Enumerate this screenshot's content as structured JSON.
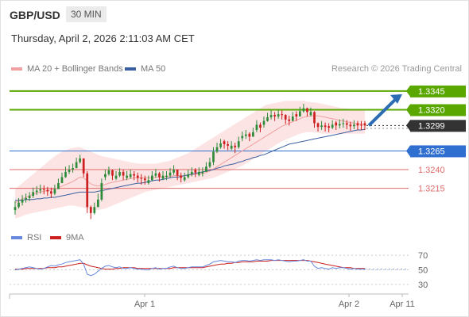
{
  "header": {
    "symbol": "GBP/USD",
    "timeframe": "30 MIN"
  },
  "datetime": "Thursday, April 2, 2026 2:11:03 AM CET",
  "credit": "Research © 2026 Trading Central",
  "colors": {
    "bb_band": "#fde4e4",
    "ma20": "#f0a0a0",
    "ma50": "#3a5fa0",
    "candle_up": "#2e8b3a",
    "candle_down": "#cc1f1f",
    "resistance": "#5aa700",
    "current": "#333333",
    "support_blue": "#2f6fcf",
    "support_red": "#e06a6a",
    "arrow": "#2c6cb5",
    "rsi": "#6688dd",
    "rsi_ma": "#cc1f1f"
  },
  "legend": {
    "bb_label": "MA 20 + Bollinger Bands",
    "ma50_label": "MA 50"
  },
  "rsi_legend": {
    "rsi_label": "RSI",
    "ma_label": "9MA"
  },
  "chart_data": [
    {
      "type": "candlestick",
      "title": "GBP/USD",
      "levels": [
        {
          "value": 1.3345,
          "label": "1.3345",
          "kind": "resistance"
        },
        {
          "value": 1.332,
          "label": "1.3320",
          "kind": "resistance"
        },
        {
          "value": 1.3299,
          "label": "1.3299",
          "kind": "current"
        },
        {
          "value": 1.3265,
          "label": "1.3265",
          "kind": "support"
        },
        {
          "value": 1.324,
          "label": "1.3240",
          "kind": "support-minor"
        },
        {
          "value": 1.3215,
          "label": "1.3215",
          "kind": "support-minor"
        }
      ],
      "ylim": [
        1.3167,
        1.3365
      ],
      "x_ticks": [
        "Apr 1",
        "Apr 2",
        "Apr 11"
      ],
      "close": [
        1.319,
        1.3196,
        1.32,
        1.3202,
        1.3205,
        1.321,
        1.3212,
        1.3214,
        1.3213,
        1.3211,
        1.3208,
        1.3214,
        1.3222,
        1.323,
        1.3237,
        1.324,
        1.3242,
        1.325,
        1.3255,
        1.3235,
        1.319,
        1.3182,
        1.319,
        1.32,
        1.3222,
        1.3234,
        1.3239,
        1.3232,
        1.3232,
        1.3237,
        1.3232,
        1.3232,
        1.3234,
        1.3232,
        1.3229,
        1.3228,
        1.3226,
        1.3226,
        1.3232,
        1.3235,
        1.323,
        1.3232,
        1.3232,
        1.3236,
        1.324,
        1.3232,
        1.3229,
        1.323,
        1.3234,
        1.3237,
        1.3236,
        1.3237,
        1.3237,
        1.3244,
        1.325,
        1.3264,
        1.327,
        1.3275,
        1.3274,
        1.3272,
        1.3272,
        1.327,
        1.3278,
        1.3285,
        1.3287,
        1.3284,
        1.329,
        1.33,
        1.3296,
        1.3305,
        1.331,
        1.3313,
        1.3311,
        1.3314,
        1.3313,
        1.3307,
        1.3305,
        1.3311,
        1.3311,
        1.3318,
        1.3322,
        1.3317,
        1.3317,
        1.3302,
        1.3297,
        1.3299,
        1.3297,
        1.3296,
        1.33,
        1.3299,
        1.3301,
        1.3302,
        1.33,
        1.3298,
        1.33,
        1.3299,
        1.3299,
        1.3299
      ],
      "high": [
        1.3198,
        1.3202,
        1.3206,
        1.3208,
        1.321,
        1.3216,
        1.3218,
        1.322,
        1.3219,
        1.3217,
        1.3216,
        1.322,
        1.3228,
        1.3236,
        1.3244,
        1.3246,
        1.3248,
        1.3256,
        1.326,
        1.3255,
        1.3238,
        1.3192,
        1.3196,
        1.3208,
        1.3228,
        1.324,
        1.3244,
        1.324,
        1.3238,
        1.3242,
        1.324,
        1.3238,
        1.324,
        1.3238,
        1.3236,
        1.3234,
        1.3232,
        1.3232,
        1.3238,
        1.3241,
        1.3237,
        1.3238,
        1.3238,
        1.3242,
        1.3246,
        1.324,
        1.3236,
        1.3236,
        1.324,
        1.3243,
        1.3242,
        1.3243,
        1.3243,
        1.325,
        1.3256,
        1.327,
        1.3276,
        1.3281,
        1.328,
        1.3278,
        1.3278,
        1.3276,
        1.3284,
        1.3291,
        1.3293,
        1.329,
        1.3296,
        1.3306,
        1.3303,
        1.3311,
        1.3316,
        1.3319,
        1.3317,
        1.332,
        1.3319,
        1.3314,
        1.3312,
        1.3317,
        1.3318,
        1.3324,
        1.3328,
        1.3323,
        1.3323,
        1.3318,
        1.3303,
        1.3305,
        1.3303,
        1.3302,
        1.3306,
        1.3305,
        1.3307,
        1.3308,
        1.3306,
        1.3304,
        1.3306,
        1.3305,
        1.3305,
        1.3305
      ],
      "low": [
        1.318,
        1.3188,
        1.3192,
        1.3196,
        1.3198,
        1.3202,
        1.3206,
        1.3208,
        1.3207,
        1.3205,
        1.3202,
        1.3206,
        1.3214,
        1.3222,
        1.3229,
        1.3234,
        1.3236,
        1.3242,
        1.3248,
        1.323,
        1.3182,
        1.3174,
        1.318,
        1.319,
        1.3198,
        1.3226,
        1.3232,
        1.3226,
        1.3226,
        1.323,
        1.3226,
        1.3226,
        1.3228,
        1.3226,
        1.3223,
        1.322,
        1.322,
        1.322,
        1.3225,
        1.3229,
        1.3224,
        1.3226,
        1.3226,
        1.3229,
        1.3233,
        1.3226,
        1.3223,
        1.3224,
        1.3228,
        1.3231,
        1.323,
        1.3231,
        1.3231,
        1.3237,
        1.3242,
        1.3246,
        1.3262,
        1.3268,
        1.3268,
        1.3266,
        1.3266,
        1.3262,
        1.3268,
        1.3278,
        1.3281,
        1.3278,
        1.3284,
        1.329,
        1.329,
        1.3296,
        1.3304,
        1.3307,
        1.3305,
        1.3308,
        1.3307,
        1.3301,
        1.3299,
        1.3305,
        1.3305,
        1.3311,
        1.3316,
        1.3311,
        1.3311,
        1.3296,
        1.3291,
        1.3293,
        1.3291,
        1.329,
        1.3294,
        1.3293,
        1.3295,
        1.3296,
        1.3294,
        1.3292,
        1.3294,
        1.3293,
        1.3293,
        1.3293
      ],
      "open": [
        1.3186,
        1.319,
        1.3196,
        1.32,
        1.3202,
        1.3205,
        1.321,
        1.3212,
        1.3214,
        1.3213,
        1.3211,
        1.3208,
        1.3214,
        1.3222,
        1.323,
        1.3237,
        1.324,
        1.3242,
        1.325,
        1.3255,
        1.3235,
        1.319,
        1.3182,
        1.319,
        1.32,
        1.323,
        1.3234,
        1.3239,
        1.3228,
        1.3232,
        1.3237,
        1.3229,
        1.323,
        1.3234,
        1.3232,
        1.3229,
        1.3228,
        1.3222,
        1.3226,
        1.3232,
        1.3235,
        1.3228,
        1.323,
        1.3232,
        1.3236,
        1.324,
        1.3232,
        1.3226,
        1.323,
        1.3234,
        1.324,
        1.3233,
        1.3235,
        1.3237,
        1.3244,
        1.325,
        1.3264,
        1.327,
        1.3278,
        1.3274,
        1.3268,
        1.3272,
        1.327,
        1.3282,
        1.3285,
        1.3288,
        1.3284,
        1.3293,
        1.33,
        1.33,
        1.3305,
        1.331,
        1.3313,
        1.3311,
        1.3314,
        1.3313,
        1.3307,
        1.3305,
        1.3314,
        1.3311,
        1.3318,
        1.3322,
        1.3313,
        1.3317,
        1.3302,
        1.3297,
        1.3299,
        1.3298,
        1.3296,
        1.3303,
        1.3299,
        1.3301,
        1.3302,
        1.33,
        1.3298,
        1.3302,
        1.33,
        1.3302
      ],
      "ma20": [
        1.3196,
        1.3198,
        1.3201,
        1.3203,
        1.3205,
        1.3207,
        1.3209,
        1.321,
        1.3211,
        1.3212,
        1.3213,
        1.3214,
        1.3216,
        1.3218,
        1.322,
        1.3222,
        1.3224,
        1.3227,
        1.323,
        1.3229,
        1.3225,
        1.3221,
        1.3219,
        1.3218,
        1.3219,
        1.322,
        1.3222,
        1.3223,
        1.3224,
        1.3225,
        1.3226,
        1.3227,
        1.3228,
        1.3229,
        1.3229,
        1.3229,
        1.3229,
        1.3229,
        1.3229,
        1.323,
        1.323,
        1.323,
        1.3231,
        1.3231,
        1.3232,
        1.3232,
        1.3232,
        1.3232,
        1.3233,
        1.3233,
        1.3234,
        1.3234,
        1.3235,
        1.3236,
        1.3238,
        1.3241,
        1.3244,
        1.3247,
        1.325,
        1.3253,
        1.3256,
        1.3259,
        1.3262,
        1.3265,
        1.3268,
        1.3271,
        1.3274,
        1.3277,
        1.328,
        1.3283,
        1.3286,
        1.3289,
        1.3292,
        1.3295,
        1.3298,
        1.33,
        1.3302,
        1.3304,
        1.3306,
        1.3308,
        1.331,
        1.3311,
        1.3312,
        1.3312,
        1.3312,
        1.3311,
        1.331,
        1.3309,
        1.3308,
        1.3307,
        1.3306,
        1.3305,
        1.3304,
        1.3303,
        1.3302,
        1.3301,
        1.3301,
        1.33
      ],
      "ma50": [
        1.3199,
        1.3199,
        1.3199,
        1.32,
        1.32,
        1.32,
        1.3201,
        1.3201,
        1.3202,
        1.3202,
        1.3203,
        1.3203,
        1.3204,
        1.3205,
        1.3206,
        1.3207,
        1.3208,
        1.3209,
        1.321,
        1.321,
        1.321,
        1.321,
        1.321,
        1.3211,
        1.3212,
        1.3213,
        1.3214,
        1.3215,
        1.3216,
        1.3217,
        1.3218,
        1.3219,
        1.322,
        1.3221,
        1.3222,
        1.3222,
        1.3223,
        1.3224,
        1.3225,
        1.3226,
        1.3226,
        1.3227,
        1.3228,
        1.3229,
        1.323,
        1.323,
        1.3231,
        1.3232,
        1.3233,
        1.3234,
        1.3235,
        1.3236,
        1.3237,
        1.3238,
        1.3239,
        1.324,
        1.3242,
        1.3243,
        1.3245,
        1.3246,
        1.3247,
        1.3248,
        1.325,
        1.3251,
        1.3253,
        1.3254,
        1.3256,
        1.3257,
        1.3259,
        1.326,
        1.3262,
        1.3264,
        1.3266,
        1.3268,
        1.327,
        1.3272,
        1.3274,
        1.3275,
        1.3276,
        1.3277,
        1.3278,
        1.3279,
        1.328,
        1.3281,
        1.3282,
        1.3283,
        1.3284,
        1.3285,
        1.3286,
        1.3287,
        1.3288,
        1.3289,
        1.329,
        1.3291,
        1.3292,
        1.3293,
        1.3293,
        1.3294
      ],
      "bb_upper": [
        1.3214,
        1.3218,
        1.3222,
        1.3226,
        1.323,
        1.3234,
        1.3238,
        1.3242,
        1.3246,
        1.325,
        1.3254,
        1.3258,
        1.3261,
        1.3264,
        1.3266,
        1.3268,
        1.3269,
        1.327,
        1.327,
        1.3268,
        1.3266,
        1.3264,
        1.3262,
        1.326,
        1.3258,
        1.3257,
        1.3256,
        1.3255,
        1.3254,
        1.3253,
        1.3252,
        1.3251,
        1.325,
        1.3249,
        1.3248,
        1.3248,
        1.3248,
        1.3248,
        1.3248,
        1.3248,
        1.3249,
        1.325,
        1.3251,
        1.3252,
        1.3254,
        1.3256,
        1.3258,
        1.326,
        1.3262,
        1.3265,
        1.3268,
        1.3271,
        1.3274,
        1.3277,
        1.328,
        1.3283,
        1.3286,
        1.3289,
        1.3292,
        1.3295,
        1.3298,
        1.3301,
        1.3304,
        1.3307,
        1.331,
        1.3313,
        1.3316,
        1.3319,
        1.3322,
        1.3325,
        1.3327,
        1.3328,
        1.3329,
        1.333,
        1.3331,
        1.3332,
        1.3332,
        1.3332,
        1.3332,
        1.3332,
        1.3332,
        1.3331,
        1.333,
        1.333,
        1.3329,
        1.3328,
        1.3327,
        1.3326,
        1.3325,
        1.3324,
        1.3323,
        1.3322,
        1.3322,
        1.3321,
        1.332,
        1.332,
        1.332,
        1.332
      ],
      "bb_lower": [
        1.3175,
        1.3176,
        1.3178,
        1.318,
        1.3181,
        1.3182,
        1.3183,
        1.3184,
        1.3185,
        1.3186,
        1.3187,
        1.3188,
        1.3189,
        1.319,
        1.3191,
        1.3192,
        1.3192,
        1.3191,
        1.319,
        1.3189,
        1.3188,
        1.3187,
        1.3186,
        1.3186,
        1.3187,
        1.3188,
        1.319,
        1.3192,
        1.3194,
        1.3196,
        1.3198,
        1.32,
        1.3202,
        1.3204,
        1.3206,
        1.3208,
        1.321,
        1.3211,
        1.3212,
        1.3213,
        1.3214,
        1.3215,
        1.3216,
        1.3217,
        1.3218,
        1.3219,
        1.322,
        1.3221,
        1.3222,
        1.3223,
        1.3224,
        1.3225,
        1.3226,
        1.3227,
        1.3228,
        1.3229,
        1.3231,
        1.3233,
        1.3235,
        1.3237,
        1.3239,
        1.3241,
        1.3243,
        1.3245,
        1.3248,
        1.3251,
        1.3254,
        1.3257,
        1.326,
        1.3263,
        1.3266,
        1.3269,
        1.3272,
        1.3275,
        1.3278,
        1.328,
        1.3282,
        1.3284,
        1.3286,
        1.3288,
        1.3289,
        1.329,
        1.329,
        1.329,
        1.3289,
        1.3288,
        1.3288,
        1.3288,
        1.3288,
        1.3288,
        1.3288,
        1.3288,
        1.3288,
        1.3288,
        1.3288,
        1.3288,
        1.3288,
        1.3288
      ],
      "forecast": {
        "from": 1.3299,
        "to": 1.3345
      }
    },
    {
      "type": "line",
      "title": "RSI",
      "y_ticks": [
        70,
        50,
        30
      ],
      "ylim": [
        20,
        80
      ],
      "rsi": [
        50,
        51,
        52,
        53,
        54,
        53,
        52,
        51,
        52,
        54,
        56,
        55,
        57,
        58,
        60,
        61,
        62,
        63,
        64,
        58,
        44,
        42,
        44,
        48,
        52,
        55,
        56,
        54,
        53,
        54,
        52,
        52,
        53,
        52,
        51,
        51,
        50,
        50,
        52,
        53,
        51,
        52,
        52,
        54,
        55,
        53,
        52,
        52,
        53,
        54,
        54,
        54,
        54,
        56,
        58,
        61,
        62,
        63,
        62,
        61,
        61,
        60,
        62,
        63,
        63,
        62,
        63,
        64,
        63,
        64,
        64,
        64,
        63,
        64,
        63,
        62,
        61,
        62,
        62,
        63,
        64,
        62,
        62,
        55,
        52,
        53,
        52,
        51,
        53,
        52,
        53,
        53,
        52,
        51,
        52,
        51,
        51,
        51
      ],
      "rsi_ma": [
        51,
        51,
        51,
        52,
        52,
        52,
        52,
        52,
        52,
        53,
        53,
        53,
        54,
        54,
        55,
        56,
        57,
        58,
        59,
        59,
        57,
        55,
        54,
        53,
        52,
        51,
        51,
        51,
        52,
        52,
        53,
        53,
        53,
        53,
        52,
        52,
        52,
        52,
        52,
        52,
        52,
        52,
        52,
        52,
        53,
        53,
        53,
        53,
        53,
        53,
        53,
        53,
        53,
        54,
        55,
        56,
        57,
        58,
        58,
        59,
        59,
        60,
        60,
        61,
        61,
        61,
        61,
        62,
        62,
        62,
        62,
        63,
        63,
        63,
        63,
        63,
        63,
        63,
        63,
        63,
        63,
        63,
        62,
        61,
        60,
        59,
        58,
        57,
        56,
        55,
        54,
        53,
        53,
        53,
        52,
        52,
        52,
        52
      ]
    }
  ]
}
